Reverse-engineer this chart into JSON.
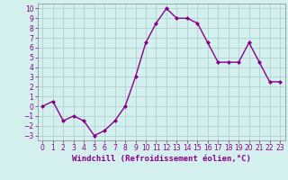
{
  "x": [
    0,
    1,
    2,
    3,
    4,
    5,
    6,
    7,
    8,
    9,
    10,
    11,
    12,
    13,
    14,
    15,
    16,
    17,
    18,
    19,
    20,
    21,
    22,
    23
  ],
  "y": [
    0,
    0.5,
    -1.5,
    -1,
    -1.5,
    -3,
    -2.5,
    -1.5,
    0,
    3,
    6.5,
    8.5,
    10,
    9,
    9,
    8.5,
    6.5,
    4.5,
    4.5,
    4.5,
    6.5,
    4.5,
    2.5,
    2.5
  ],
  "line_color": "#880088",
  "marker": "D",
  "marker_size": 2,
  "bg_color": "#d4f0ee",
  "grid_color": "#aacccc",
  "xlabel": "Windchill (Refroidissement éolien,°C)",
  "xlabel_fontsize": 6.5,
  "yticks": [
    -3,
    -2,
    -1,
    0,
    1,
    2,
    3,
    4,
    5,
    6,
    7,
    8,
    9,
    10
  ],
  "xticks": [
    0,
    1,
    2,
    3,
    4,
    5,
    6,
    7,
    8,
    9,
    10,
    11,
    12,
    13,
    14,
    15,
    16,
    17,
    18,
    19,
    20,
    21,
    22,
    23
  ],
  "ylim": [
    -3.5,
    10.5
  ],
  "xlim": [
    -0.5,
    23.5
  ],
  "tick_fontsize": 5.5,
  "line_width": 1.0
}
